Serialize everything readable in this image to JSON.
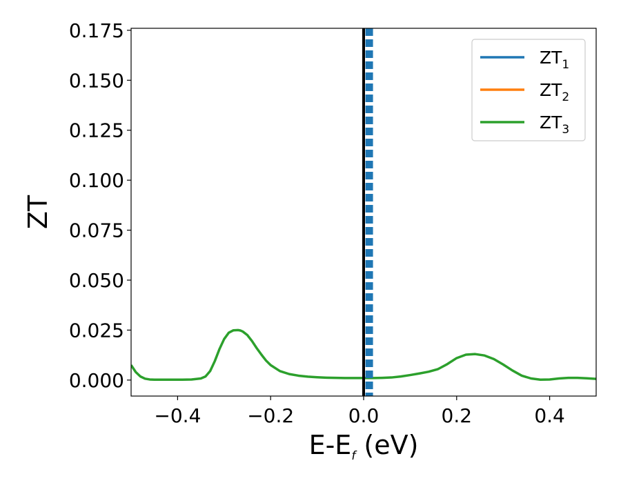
{
  "chart_data": {
    "type": "line",
    "xlabel_main": "E-E",
    "xlabel_sub": "f",
    "xlabel_unit": " (eV)",
    "ylabel": "ZT",
    "xlim": [
      -0.5,
      0.5
    ],
    "ylim": [
      -0.008,
      0.176
    ],
    "x_ticks": [
      -0.4,
      -0.2,
      0.0,
      0.2,
      0.4
    ],
    "x_tick_labels": [
      "−0.4",
      "−0.2",
      "0.0",
      "0.2",
      "0.4"
    ],
    "y_ticks": [
      0.0,
      0.025,
      0.05,
      0.075,
      0.1,
      0.125,
      0.15,
      0.175
    ],
    "y_tick_labels": [
      "0.000",
      "0.025",
      "0.050",
      "0.075",
      "0.100",
      "0.125",
      "0.150",
      "0.175"
    ],
    "grid": false,
    "legend_position": "top-right",
    "colors": {
      "zt1": "#1f77b4",
      "zt2": "#ff7f0e",
      "zt3": "#2ca02c",
      "fermi": "#000000"
    },
    "series": [
      {
        "name": "ZT",
        "sub": "1",
        "color": "#1f77b4",
        "x": [],
        "y": []
      },
      {
        "name": "ZT",
        "sub": "2",
        "color": "#ff7f0e",
        "x": [],
        "y": []
      },
      {
        "name": "ZT",
        "sub": "3",
        "color": "#2ca02c",
        "x": [
          -0.5,
          -0.49,
          -0.48,
          -0.47,
          -0.46,
          -0.45,
          -0.43,
          -0.41,
          -0.39,
          -0.37,
          -0.35,
          -0.34,
          -0.33,
          -0.32,
          -0.31,
          -0.3,
          -0.29,
          -0.28,
          -0.27,
          -0.265,
          -0.26,
          -0.25,
          -0.24,
          -0.23,
          -0.22,
          -0.21,
          -0.2,
          -0.18,
          -0.16,
          -0.14,
          -0.12,
          -0.1,
          -0.08,
          -0.06,
          -0.04,
          -0.02,
          0.0,
          0.02,
          0.04,
          0.06,
          0.08,
          0.1,
          0.12,
          0.14,
          0.16,
          0.18,
          0.2,
          0.22,
          0.24,
          0.26,
          0.28,
          0.3,
          0.32,
          0.34,
          0.36,
          0.38,
          0.4,
          0.42,
          0.44,
          0.46,
          0.48,
          0.5
        ],
        "y": [
          0.0075,
          0.004,
          0.0018,
          0.0007,
          0.0003,
          0.0002,
          0.0002,
          0.0002,
          0.0002,
          0.0003,
          0.0008,
          0.0018,
          0.0045,
          0.0095,
          0.0155,
          0.0205,
          0.0237,
          0.0249,
          0.025,
          0.0248,
          0.0243,
          0.0225,
          0.0195,
          0.016,
          0.0128,
          0.0098,
          0.0075,
          0.0045,
          0.003,
          0.0022,
          0.0017,
          0.0014,
          0.0012,
          0.0011,
          0.001,
          0.001,
          0.001,
          0.001,
          0.0011,
          0.0013,
          0.0018,
          0.0025,
          0.0033,
          0.0042,
          0.0055,
          0.008,
          0.011,
          0.0127,
          0.013,
          0.0123,
          0.0105,
          0.0078,
          0.0048,
          0.0022,
          0.0008,
          0.0002,
          0.0003,
          0.0008,
          0.0011,
          0.0011,
          0.0009,
          0.0006
        ]
      }
    ],
    "annotations": {
      "fermi_line_x": 0.0,
      "zt1_dashed_x": 0.012
    }
  }
}
